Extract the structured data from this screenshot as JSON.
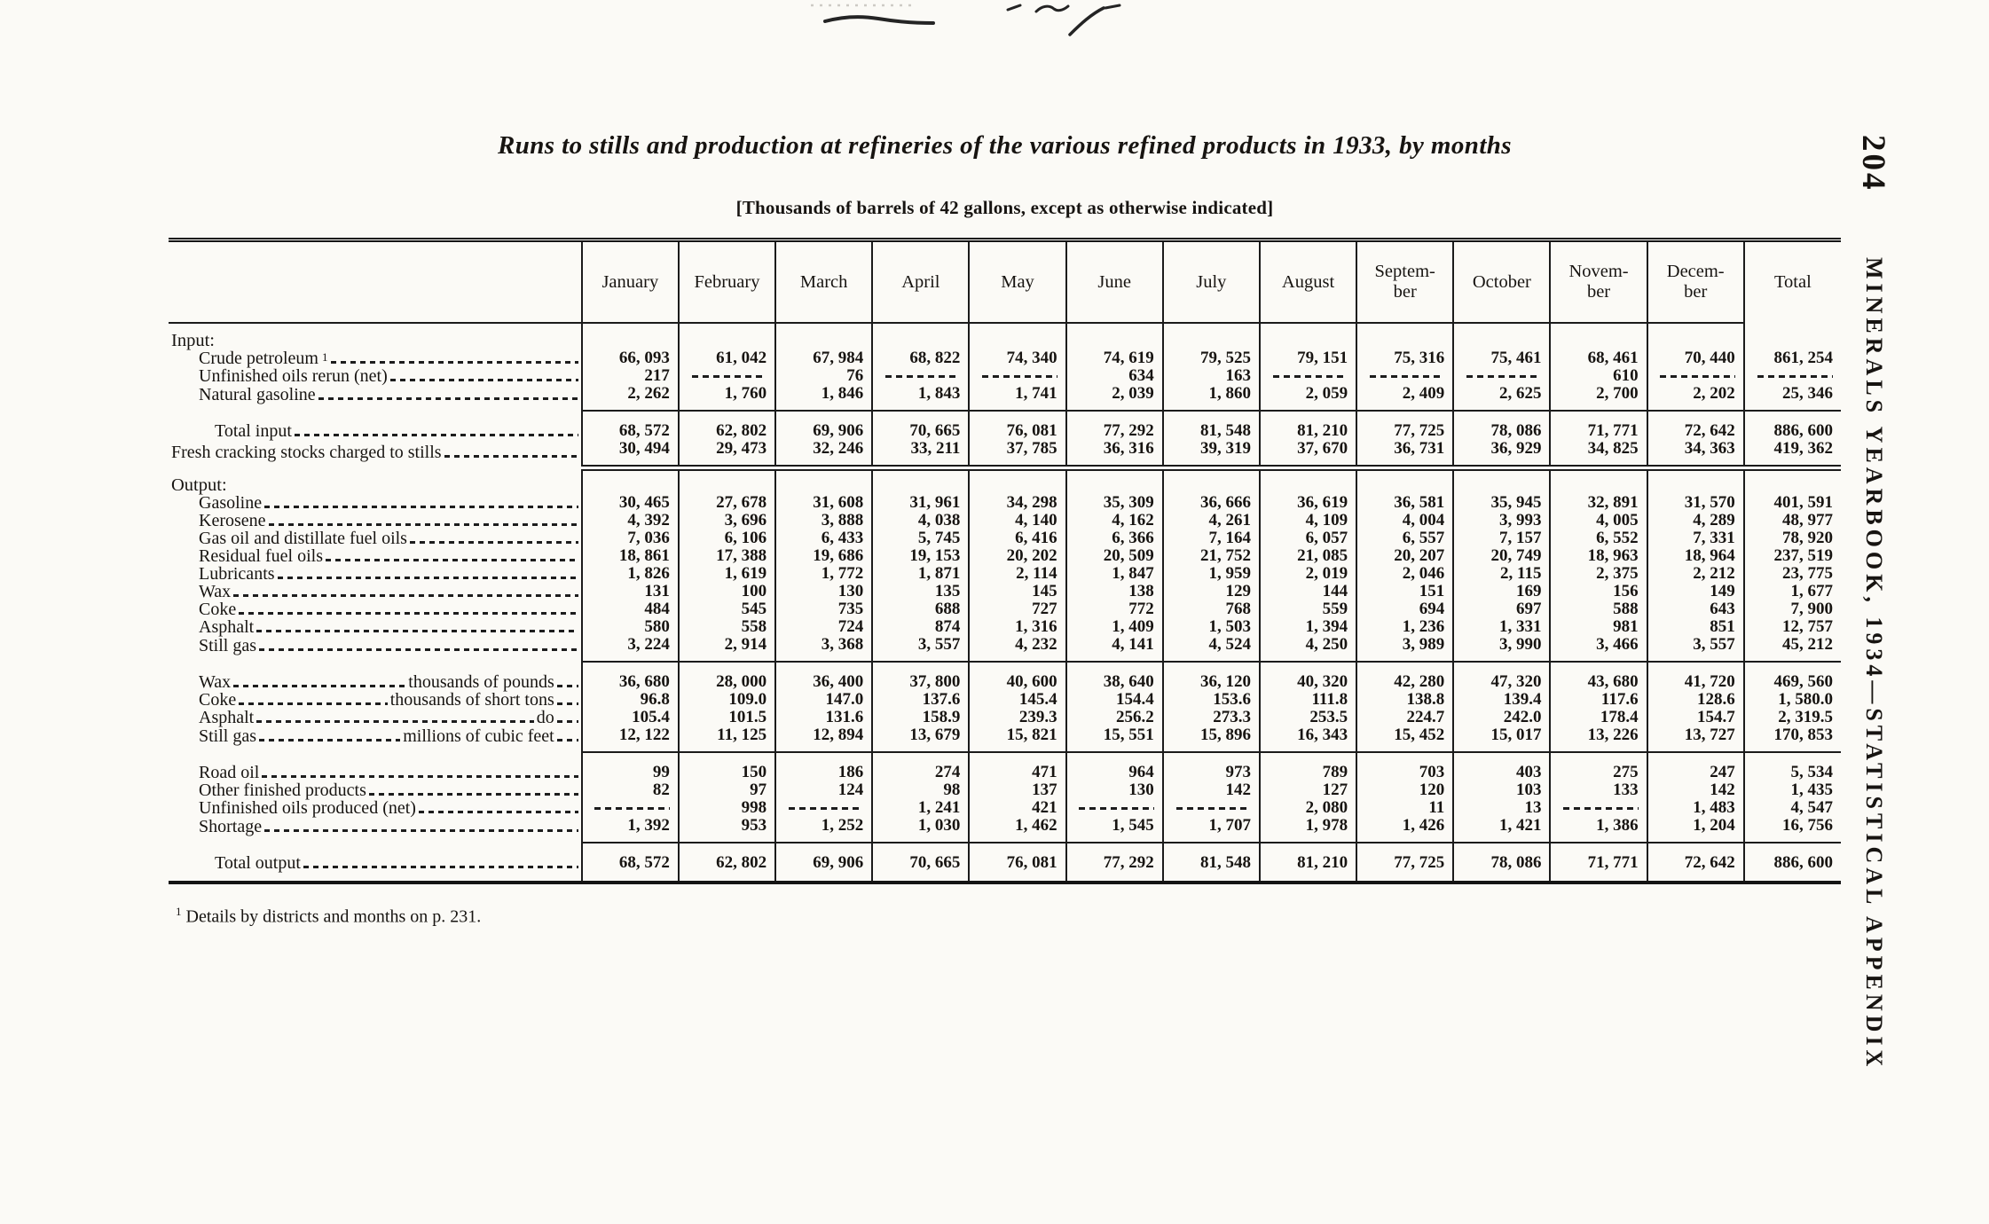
{
  "page": {
    "page_number": "204",
    "margin_title": "MINERALS YEARBOOK, 1934—STATISTICAL APPENDIX",
    "title": "Runs to stills and production at refineries of the various refined products in 1933, by months",
    "unit_note": "[Thousands of barrels of 42 gallons, except as otherwise indicated]",
    "footnote_marker": "1",
    "footnote_text": "Details by districts and months on p. 231."
  },
  "table": {
    "row_header": "",
    "no_data_marker": "----------",
    "columns": [
      "January",
      "February",
      "March",
      "April",
      "May",
      "June",
      "July",
      "August",
      "Septem-\nber",
      "October",
      "Novem-\nber",
      "Decem-\nber",
      "Total"
    ],
    "rows": [
      {
        "label": "Input:",
        "section": true,
        "indent": 0,
        "values": [
          "",
          "",
          "",
          "",
          "",
          "",
          "",
          "",
          "",
          "",
          "",
          "",
          ""
        ]
      },
      {
        "label": "Crude petroleum",
        "sup": "1",
        "indent": 1,
        "values": [
          "66, 093",
          "61, 042",
          "67, 984",
          "68, 822",
          "74, 340",
          "74, 619",
          "79, 525",
          "79, 151",
          "75, 316",
          "75, 461",
          "68, 461",
          "70, 440",
          "861, 254"
        ]
      },
      {
        "label": "Unfinished oils rerun (net)",
        "indent": 1,
        "values": [
          "217",
          "----------",
          "76",
          "----------",
          "----------",
          "634",
          "163",
          "----------",
          "----------",
          "----------",
          "610",
          "----------",
          "----------"
        ]
      },
      {
        "label": "Natural gasoline",
        "indent": 1,
        "rule": "single",
        "values": [
          "2, 262",
          "1, 760",
          "1, 846",
          "1, 843",
          "1, 741",
          "2, 039",
          "1, 860",
          "2, 059",
          "2, 409",
          "2, 625",
          "2, 700",
          "2, 202",
          "25, 346"
        ]
      },
      {
        "label": "Total input",
        "indent": 2,
        "groupStart": true,
        "values": [
          "68, 572",
          "62, 802",
          "69, 906",
          "70, 665",
          "76, 081",
          "77, 292",
          "81, 548",
          "81, 210",
          "77, 725",
          "78, 086",
          "71, 771",
          "72, 642",
          "886, 600"
        ]
      },
      {
        "label": "Fresh cracking stocks charged to stills",
        "indent": 0,
        "rule": "double",
        "values": [
          "30, 494",
          "29, 473",
          "32, 246",
          "33, 211",
          "37, 785",
          "36, 316",
          "39, 319",
          "37, 670",
          "36, 731",
          "36, 929",
          "34, 825",
          "34, 363",
          "419, 362"
        ]
      },
      {
        "label": "Output:",
        "section": true,
        "indent": 0,
        "values": [
          "",
          "",
          "",
          "",
          "",
          "",
          "",
          "",
          "",
          "",
          "",
          "",
          ""
        ]
      },
      {
        "label": "Gasoline",
        "indent": 1,
        "values": [
          "30, 465",
          "27, 678",
          "31, 608",
          "31, 961",
          "34, 298",
          "35, 309",
          "36, 666",
          "36, 619",
          "36, 581",
          "35, 945",
          "32, 891",
          "31, 570",
          "401, 591"
        ]
      },
      {
        "label": "Kerosene",
        "indent": 1,
        "values": [
          "4, 392",
          "3, 696",
          "3, 888",
          "4, 038",
          "4, 140",
          "4, 162",
          "4, 261",
          "4, 109",
          "4, 004",
          "3, 993",
          "4, 005",
          "4, 289",
          "48, 977"
        ]
      },
      {
        "label": "Gas oil and distillate fuel oils",
        "indent": 1,
        "values": [
          "7, 036",
          "6, 106",
          "6, 433",
          "5, 745",
          "6, 416",
          "6, 366",
          "7, 164",
          "6, 057",
          "6, 557",
          "7, 157",
          "6, 552",
          "7, 331",
          "78, 920"
        ]
      },
      {
        "label": "Residual fuel oils",
        "indent": 1,
        "values": [
          "18, 861",
          "17, 388",
          "19, 686",
          "19, 153",
          "20, 202",
          "20, 509",
          "21, 752",
          "21, 085",
          "20, 207",
          "20, 749",
          "18, 963",
          "18, 964",
          "237, 519"
        ]
      },
      {
        "label": "Lubricants",
        "indent": 1,
        "values": [
          "1, 826",
          "1, 619",
          "1, 772",
          "1, 871",
          "2, 114",
          "1, 847",
          "1, 959",
          "2, 019",
          "2, 046",
          "2, 115",
          "2, 375",
          "2, 212",
          "23, 775"
        ]
      },
      {
        "label": "Wax",
        "indent": 1,
        "values": [
          "131",
          "100",
          "130",
          "135",
          "145",
          "138",
          "129",
          "144",
          "151",
          "169",
          "156",
          "149",
          "1, 677"
        ]
      },
      {
        "label": "Coke",
        "indent": 1,
        "values": [
          "484",
          "545",
          "735",
          "688",
          "727",
          "772",
          "768",
          "559",
          "694",
          "697",
          "588",
          "643",
          "7, 900"
        ]
      },
      {
        "label": "Asphalt",
        "indent": 1,
        "values": [
          "580",
          "558",
          "724",
          "874",
          "1, 316",
          "1, 409",
          "1, 503",
          "1, 394",
          "1, 236",
          "1, 331",
          "981",
          "851",
          "12, 757"
        ]
      },
      {
        "label": "Still gas",
        "indent": 1,
        "rule": "single",
        "values": [
          "3, 224",
          "2, 914",
          "3, 368",
          "3, 557",
          "4, 232",
          "4, 141",
          "4, 524",
          "4, 250",
          "3, 989",
          "3, 990",
          "3, 466",
          "3, 557",
          "45, 212"
        ]
      },
      {
        "label": "Wax",
        "unit": "thousands of pounds",
        "indent": 1,
        "groupStart": true,
        "values": [
          "36, 680",
          "28, 000",
          "36, 400",
          "37, 800",
          "40, 600",
          "38, 640",
          "36, 120",
          "40, 320",
          "42, 280",
          "47, 320",
          "43, 680",
          "41, 720",
          "469, 560"
        ]
      },
      {
        "label": "Coke",
        "unit": "thousands of short tons",
        "indent": 1,
        "values": [
          "96.8",
          "109.0",
          "147.0",
          "137.6",
          "145.4",
          "154.4",
          "153.6",
          "111.8",
          "138.8",
          "139.4",
          "117.6",
          "128.6",
          "1, 580.0"
        ]
      },
      {
        "label": "Asphalt",
        "unit": "do",
        "indent": 1,
        "values": [
          "105.4",
          "101.5",
          "131.6",
          "158.9",
          "239.3",
          "256.2",
          "273.3",
          "253.5",
          "224.7",
          "242.0",
          "178.4",
          "154.7",
          "2, 319.5"
        ]
      },
      {
        "label": "Still gas",
        "unit": "millions of cubic feet",
        "indent": 1,
        "rule": "single",
        "values": [
          "12, 122",
          "11, 125",
          "12, 894",
          "13, 679",
          "15, 821",
          "15, 551",
          "15, 896",
          "16, 343",
          "15, 452",
          "15, 017",
          "13, 226",
          "13, 727",
          "170, 853"
        ]
      },
      {
        "label": "Road oil",
        "indent": 1,
        "groupStart": true,
        "values": [
          "99",
          "150",
          "186",
          "274",
          "471",
          "964",
          "973",
          "789",
          "703",
          "403",
          "275",
          "247",
          "5, 534"
        ]
      },
      {
        "label": "Other finished products",
        "indent": 1,
        "values": [
          "82",
          "97",
          "124",
          "98",
          "137",
          "130",
          "142",
          "127",
          "120",
          "103",
          "133",
          "142",
          "1, 435"
        ]
      },
      {
        "label": "Unfinished oils produced (net)",
        "indent": 1,
        "values": [
          "----------",
          "998",
          "----------",
          "1, 241",
          "421",
          "----------",
          "----------",
          "2, 080",
          "11",
          "13",
          "----------",
          "1, 483",
          "4, 547"
        ]
      },
      {
        "label": "Shortage",
        "indent": 1,
        "rule": "single",
        "values": [
          "1, 392",
          "953",
          "1, 252",
          "1, 030",
          "1, 462",
          "1, 545",
          "1, 707",
          "1, 978",
          "1, 426",
          "1, 421",
          "1, 386",
          "1, 204",
          "16, 756"
        ]
      },
      {
        "label": "Total output",
        "indent": 2,
        "groupStart": true,
        "values": [
          "68, 572",
          "62, 802",
          "69, 906",
          "70, 665",
          "76, 081",
          "77, 292",
          "81, 548",
          "81, 210",
          "77, 725",
          "78, 086",
          "71, 771",
          "72, 642",
          "886, 600"
        ]
      }
    ]
  }
}
